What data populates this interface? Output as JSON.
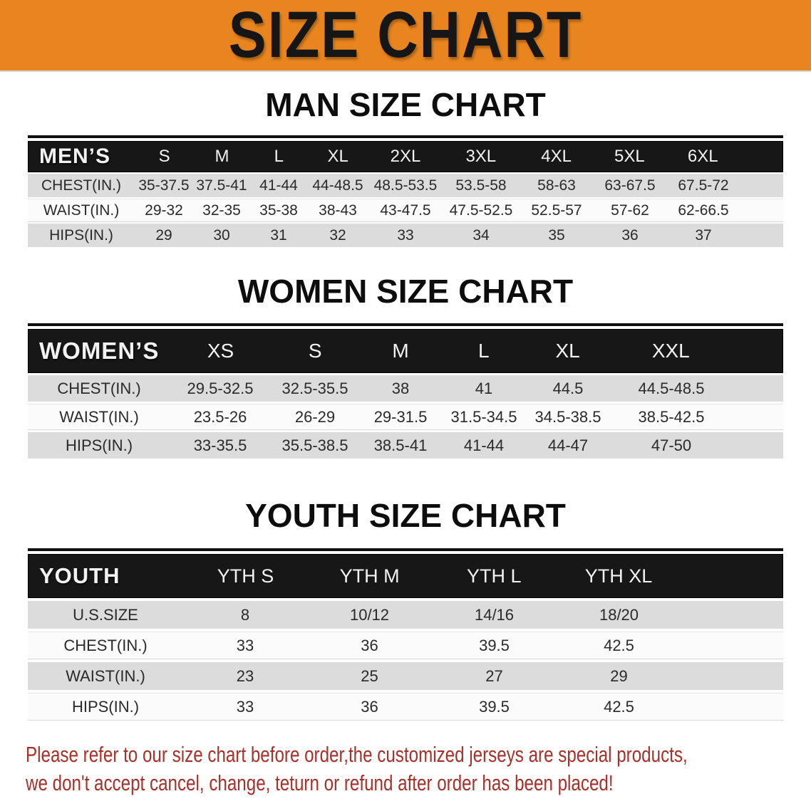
{
  "banner": {
    "title": "SIZE CHART"
  },
  "colors": {
    "banner_bg": "#E8851E",
    "table_header_bg": "#171717",
    "row_alt_bg": "#DCDCDC",
    "disclaimer_red": "#A8302A"
  },
  "sections": [
    {
      "heading": "MAN SIZE CHART",
      "table": {
        "header_label": "MEN’S",
        "columns": [
          "S",
          "M",
          "L",
          "XL",
          "2XL",
          "3XL",
          "4XL",
          "5XL",
          "6XL"
        ],
        "rows": [
          {
            "label": "CHEST(IN.)",
            "values": [
              "35-37.5",
              "37.5-41",
              "41-44",
              "44-48.5",
              "48.5-53.5",
              "53.5-58",
              "58-63",
              "63-67.5",
              "67.5-72"
            ]
          },
          {
            "label": "WAIST(IN.)",
            "values": [
              "29-32",
              "32-35",
              "35-38",
              "38-43",
              "43-47.5",
              "47.5-52.5",
              "52.5-57",
              "57-62",
              "62-66.5"
            ]
          },
          {
            "label": "HIPS(IN.)",
            "values": [
              "29",
              "30",
              "31",
              "32",
              "33",
              "34",
              "35",
              "36",
              "37"
            ]
          }
        ]
      }
    },
    {
      "heading": "WOMEN SIZE CHART",
      "table": {
        "header_label": "WOMEN’S",
        "columns": [
          "XS",
          "S",
          "M",
          "L",
          "XL",
          "XXL"
        ],
        "rows": [
          {
            "label": "CHEST(IN.)",
            "values": [
              "29.5-32.5",
              "32.5-35.5",
              "38",
              "41",
              "44.5",
              "44.5-48.5"
            ]
          },
          {
            "label": "WAIST(IN.)",
            "values": [
              "23.5-26",
              "26-29",
              "29-31.5",
              "31.5-34.5",
              "34.5-38.5",
              "38.5-42.5"
            ]
          },
          {
            "label": "HIPS(IN.)",
            "values": [
              "33-35.5",
              "35.5-38.5",
              "38.5-41",
              "41-44",
              "44-47",
              "47-50"
            ]
          }
        ]
      }
    },
    {
      "heading": "YOUTH SIZE CHART",
      "table": {
        "header_label": "YOUTH",
        "columns": [
          "YTH S",
          "YTH M",
          "YTH L",
          "YTH XL"
        ],
        "rows": [
          {
            "label": "U.S.SIZE",
            "values": [
              "8",
              "10/12",
              "14/16",
              "18/20"
            ]
          },
          {
            "label": "CHEST(IN.)",
            "values": [
              "33",
              "36",
              "39.5",
              "42.5"
            ]
          },
          {
            "label": "WAIST(IN.)",
            "values": [
              "23",
              "25",
              "27",
              "29"
            ]
          },
          {
            "label": "HIPS(IN.)",
            "values": [
              "33",
              "36",
              "39.5",
              "42.5"
            ]
          }
        ]
      }
    }
  ],
  "disclaimer": {
    "line1": "Please refer to our size chart before order,the customized jerseys are special products,",
    "line2": "we don't accept cancel, change, teturn or refund after order has been placed!"
  }
}
